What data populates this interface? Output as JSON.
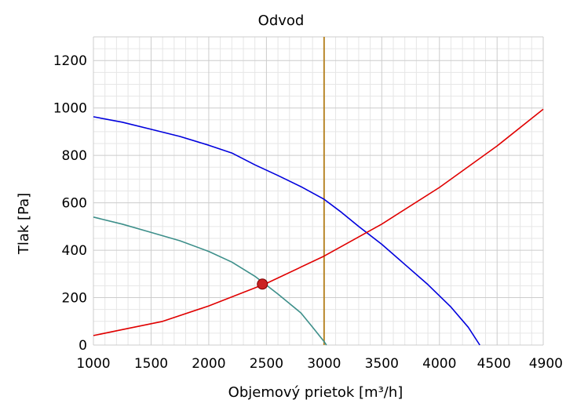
{
  "chart_data": {
    "type": "line",
    "title": "Odvod",
    "xlabel": "Objemový prietok [m³/h]",
    "ylabel": "Tlak [Pa]",
    "xlim": [
      1000,
      4900
    ],
    "ylim": [
      0,
      1300
    ],
    "xticks": [
      1000,
      1500,
      2000,
      2500,
      3000,
      3500,
      4000,
      4500,
      4900
    ],
    "yticks": [
      0,
      200,
      400,
      600,
      800,
      1000,
      1200
    ],
    "grid": true,
    "colors": {
      "fan_max": "#0000dd",
      "fan_low": "#3d8f8a",
      "system": "#e00000",
      "operating_line": "#b8872a",
      "operating_point": "#cc2222",
      "grid_major": "#cccccc",
      "grid_minor": "#e6e6e6"
    },
    "series": [
      {
        "key": "fan_max",
        "x": [
          1000,
          1250,
          1500,
          1750,
          2000,
          2200,
          2400,
          2600,
          2800,
          3000,
          3150,
          3300,
          3500,
          3700,
          3900,
          4100,
          4250,
          4350
        ],
        "y": [
          963,
          940,
          910,
          880,
          843,
          810,
          760,
          715,
          668,
          615,
          560,
          500,
          425,
          340,
          255,
          160,
          75,
          0
        ]
      },
      {
        "key": "fan_low",
        "x": [
          1000,
          1250,
          1500,
          1750,
          2000,
          2200,
          2400,
          2600,
          2800,
          2900,
          3000,
          3020
        ],
        "y": [
          540,
          510,
          475,
          440,
          395,
          350,
          290,
          215,
          135,
          75,
          15,
          0
        ]
      },
      {
        "key": "system",
        "x": [
          1000,
          1300,
          1600,
          2000,
          2500,
          3000,
          3500,
          4000,
          4500,
          4900
        ],
        "y": [
          40,
          70,
          100,
          165,
          260,
          375,
          510,
          665,
          840,
          995
        ]
      }
    ],
    "operating_line_x": 3000,
    "operating_point": {
      "x": 2465,
      "y": 257
    }
  }
}
